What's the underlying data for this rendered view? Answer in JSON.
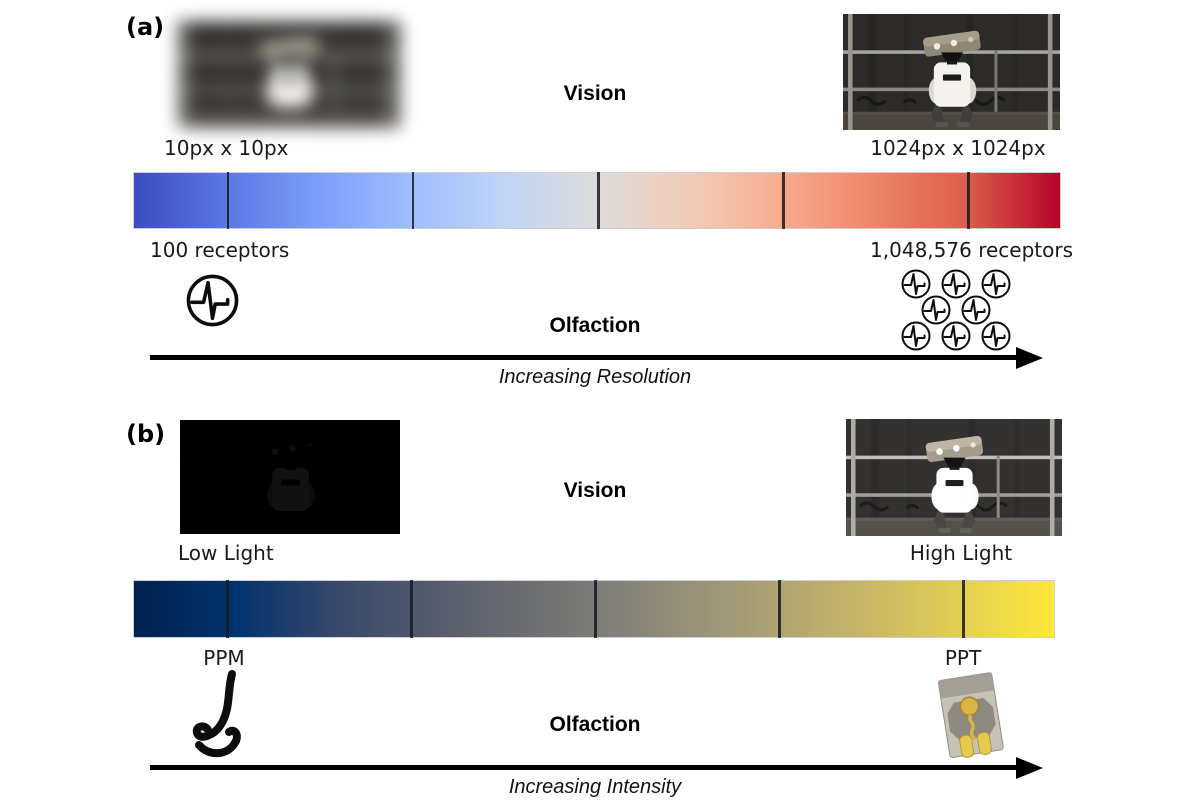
{
  "panel_a": {
    "label": "(a)",
    "vision_label": "Vision",
    "olfaction_label": "Olfaction",
    "low_res_caption": "10px x 10px",
    "high_res_caption": "1024px x 1024px",
    "low_scale_label": "100 receptors",
    "high_scale_label": "1,048,576 receptors",
    "axis_caption": "Increasing Resolution",
    "colorbar": {
      "colormap": "coolwarm blue-to-red",
      "stops": [
        "#3b4cc0",
        "#5977e3",
        "#7b9ff9",
        "#9ebeff",
        "#c0d4f5",
        "#dddcdb",
        "#f2cbb7",
        "#f7ac8e",
        "#ee8468",
        "#dc5d4a",
        "#b40426"
      ],
      "ticks_pct": [
        10,
        30,
        50,
        70,
        90
      ]
    },
    "icons": {
      "left": "single olfactory receptor (spike in circle)",
      "right": "cluster of eight olfactory receptors"
    }
  },
  "panel_b": {
    "label": "(b)",
    "vision_label": "Vision",
    "olfaction_label": "Olfaction",
    "low_caption": "Low Light",
    "high_caption": "High Light",
    "low_scale_label": "PPM",
    "high_scale_label": "PPT",
    "axis_caption": "Increasing Intensity",
    "colorbar": {
      "colormap": "cividis dark-blue-to-yellow",
      "stops": [
        "#00224e",
        "#00336f",
        "#39486b",
        "#575d6d",
        "#707173",
        "#8a8779",
        "#a69d75",
        "#c3b369",
        "#e1cc55",
        "#fee838"
      ],
      "ticks_pct": [
        10,
        30,
        50,
        70,
        90
      ]
    },
    "icons": {
      "left": "human nose outline",
      "right": "gas sensor chip photo"
    }
  }
}
